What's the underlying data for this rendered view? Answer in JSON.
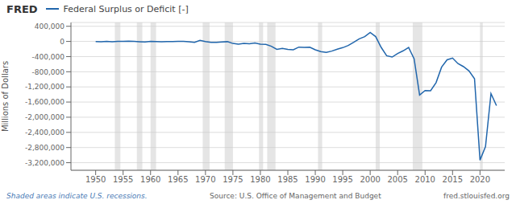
{
  "chart_data": {
    "type": "line",
    "title": "Federal Surplus or Deficit [-]",
    "y_label": "Millions of Dollars",
    "annotations": [
      "FRED",
      "Shaded areas indicate U.S. recessions.",
      "Source: U.S. Office of Management and Budget",
      "fred.stlouisfed.org"
    ],
    "color": "#2166ac",
    "grid": true,
    "xlim": [
      1945.5,
      2024.5
    ],
    "xticks": [
      1950,
      1955,
      1960,
      1965,
      1970,
      1975,
      1980,
      1985,
      1990,
      1995,
      2000,
      2005,
      2010,
      2015,
      2020
    ],
    "ylim": [
      -3400000,
      500000
    ],
    "yticks": [
      {
        "value": 400000,
        "label": "400,000"
      },
      0,
      {
        "value": -400000,
        "label": "-400,000"
      },
      {
        "value": -800000,
        "label": "-800,000"
      },
      {
        "value": -1200000,
        "label": "-1,200,000"
      },
      {
        "value": -1600000,
        "label": "-1,600,000"
      },
      {
        "value": -2000000,
        "label": "-2,000,000"
      },
      {
        "value": -2400000,
        "label": "-2,400,000"
      },
      {
        "value": -2800000,
        "label": "-2,800,000"
      },
      {
        "value": -3200000,
        "label": "-3,200,000"
      }
    ],
    "recession_bands": [
      [
        1953.5,
        1954.5
      ],
      [
        1957.5,
        1958.5
      ],
      [
        1960.0,
        1961.0
      ],
      [
        1969.5,
        1970.75
      ],
      [
        1973.5,
        1975.0
      ],
      [
        1979.75,
        1980.5
      ],
      [
        1981.25,
        1982.75
      ],
      [
        1990.5,
        1991.25
      ],
      [
        2001.0,
        2001.75
      ],
      [
        2007.75,
        2009.5
      ],
      [
        2020.0,
        2020.5
      ]
    ],
    "x": [
      1950,
      1951,
      1952,
      1953,
      1954,
      1955,
      1956,
      1957,
      1958,
      1959,
      1960,
      1961,
      1962,
      1963,
      1964,
      1965,
      1966,
      1967,
      1968,
      1969,
      1970,
      1971,
      1972,
      1973,
      1974,
      1975,
      1976,
      1977,
      1978,
      1979,
      1980,
      1981,
      1982,
      1983,
      1984,
      1985,
      1986,
      1987,
      1988,
      1989,
      1990,
      1991,
      1992,
      1993,
      1994,
      1995,
      1996,
      1997,
      1998,
      1999,
      2000,
      2001,
      2002,
      2003,
      2004,
      2005,
      2006,
      2007,
      2008,
      2009,
      2010,
      2011,
      2012,
      2013,
      2014,
      2015,
      2016,
      2017,
      2018,
      2019,
      2020,
      2021,
      2022,
      2023
    ],
    "values": [
      -3042,
      -6102,
      3975,
      -6493,
      1827,
      4082,
      6132,
      3422,
      -6174,
      -12859,
      3006,
      -3341,
      -7146,
      -4756,
      -5915,
      1411,
      3698,
      -8643,
      -25161,
      27013,
      -2842,
      -23033,
      -23373,
      -14908,
      -6135,
      -53242,
      -73732,
      -53659,
      -59185,
      -40726,
      -73830,
      -78968,
      -127977,
      -207802,
      -185367,
      -212308,
      -221227,
      -149730,
      -155178,
      -152639,
      -221036,
      -269238,
      -290321,
      -255051,
      -203186,
      -163952,
      -107431,
      -21884,
      69270,
      125610,
      236241,
      128236,
      -157758,
      -377585,
      -412727,
      -318346,
      -248181,
      -160701,
      -458553,
      -1412688,
      -1294204,
      -1299593,
      -1086963,
      -679544,
      -484626,
      -438499,
      -584651,
      -665753,
      -779135,
      -984388,
      -3131917,
      -2775568,
      -1375469,
      -1695017
    ]
  }
}
